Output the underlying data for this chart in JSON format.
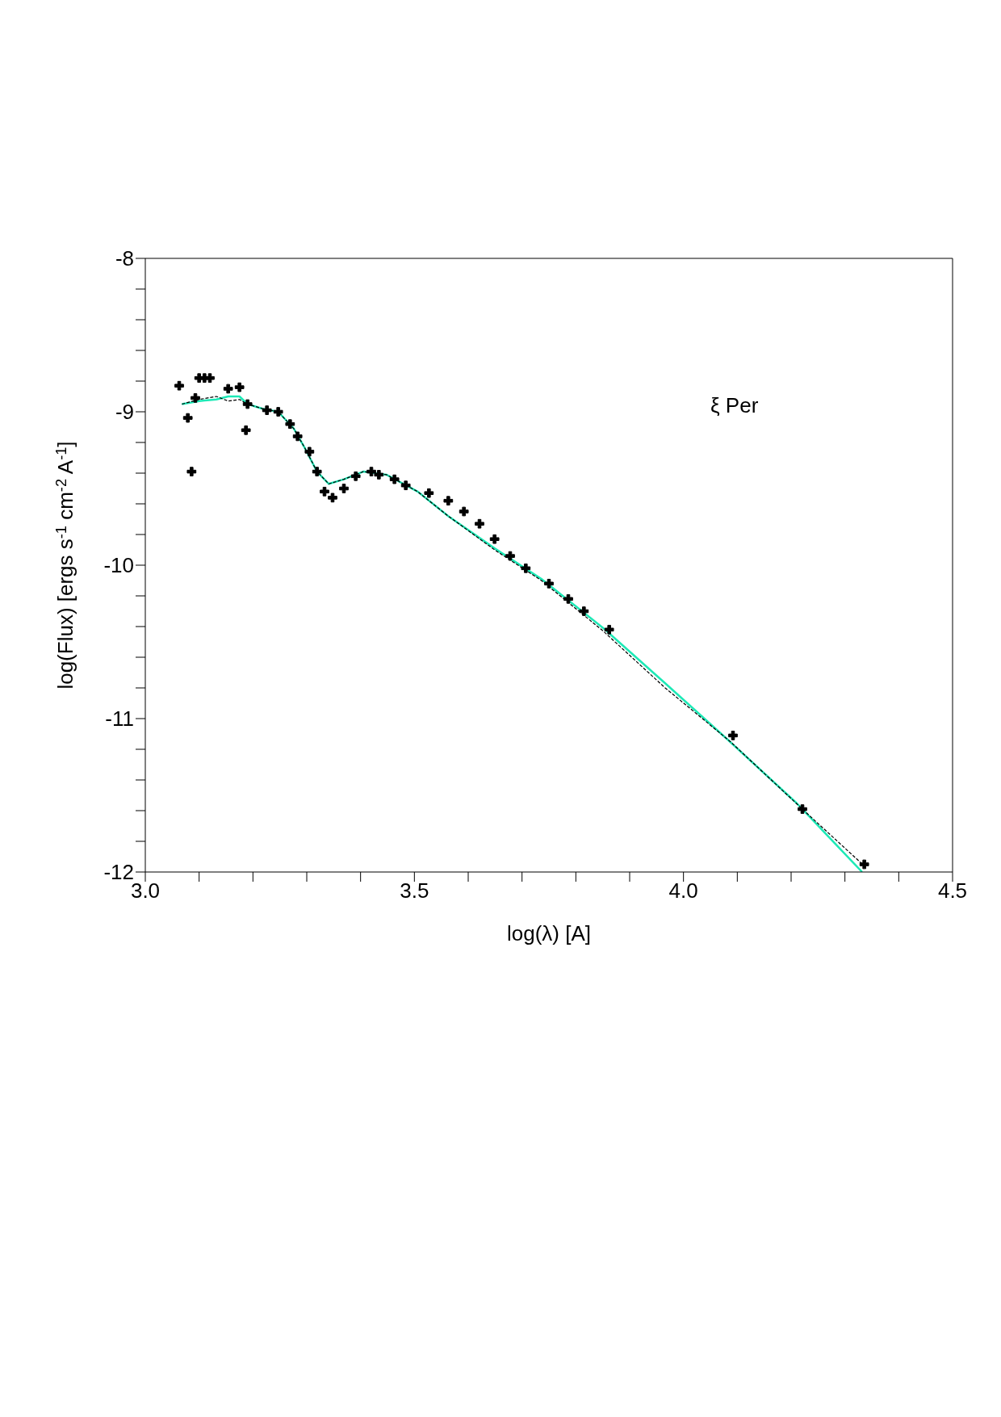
{
  "chart_data": {
    "type": "scatter",
    "xlabel": "log(λ) [A]",
    "ylabel": "log(Flux) [ergs s$^{-1}$ cm$^{-2}$ A$^{-1}$]",
    "annotations": [
      "ξ Per"
    ],
    "xlim": [
      3.0,
      4.5
    ],
    "ylim": [
      -12,
      -8
    ],
    "xticks": [
      {
        "value": 3.0,
        "label": "3.0"
      },
      {
        "value": 3.1,
        "label": null
      },
      {
        "value": 3.2,
        "label": null
      },
      {
        "value": 3.3,
        "label": null
      },
      {
        "value": 3.4,
        "label": null
      },
      {
        "value": 3.5,
        "label": "3.5"
      },
      {
        "value": 3.6,
        "label": null
      },
      {
        "value": 3.7,
        "label": null
      },
      {
        "value": 3.8,
        "label": null
      },
      {
        "value": 3.9,
        "label": null
      },
      {
        "value": 4.0,
        "label": "4.0"
      },
      {
        "value": 4.1,
        "label": null
      },
      {
        "value": 4.2,
        "label": null
      },
      {
        "value": 4.3,
        "label": null
      },
      {
        "value": 4.4,
        "label": null
      },
      {
        "value": 4.5,
        "label": "4.5"
      }
    ],
    "yticks": [
      -12,
      {
        "value": -11.8,
        "label": null
      },
      {
        "value": -11.6,
        "label": null
      },
      {
        "value": -11.4,
        "label": null
      },
      {
        "value": -11.2,
        "label": null
      },
      -11,
      {
        "value": -10.8,
        "label": null
      },
      {
        "value": -10.6,
        "label": null
      },
      {
        "value": -10.4,
        "label": null
      },
      {
        "value": -10.2,
        "label": null
      },
      -10,
      {
        "value": -9.8,
        "label": null
      },
      {
        "value": -9.6,
        "label": null
      },
      {
        "value": -9.4,
        "label": null
      },
      {
        "value": -9.2,
        "label": null
      },
      -9,
      {
        "value": -8.8,
        "label": null
      },
      {
        "value": -8.6,
        "label": null
      },
      {
        "value": -8.4,
        "label": null
      },
      {
        "value": -8.2,
        "label": null
      },
      -8
    ],
    "series": [
      {
        "type": "scatter",
        "marker": "cross",
        "color": "#000000",
        "x": [
          3.063,
          3.079,
          3.086,
          3.093,
          3.1,
          3.11,
          3.12,
          3.154,
          3.175,
          3.187,
          3.19,
          3.226,
          3.247,
          3.269,
          3.283,
          3.305,
          3.319,
          3.333,
          3.348,
          3.369,
          3.391,
          3.42,
          3.434,
          3.463,
          3.484,
          3.527,
          3.563,
          3.592,
          3.621,
          3.649,
          3.678,
          3.707,
          3.75,
          3.786,
          3.815,
          3.862,
          4.092,
          4.221,
          4.336
        ],
        "values": [
          -8.83,
          -9.04,
          -9.39,
          -8.91,
          -8.78,
          -8.78,
          -8.78,
          -8.85,
          -8.84,
          -9.12,
          -8.95,
          -8.99,
          -9.0,
          -9.08,
          -9.16,
          -9.26,
          -9.39,
          -9.52,
          -9.56,
          -9.5,
          -9.42,
          -9.39,
          -9.41,
          -9.44,
          -9.48,
          -9.53,
          -9.58,
          -9.65,
          -9.73,
          -9.83,
          -9.94,
          -10.02,
          -10.12,
          -10.22,
          -10.3,
          -10.42,
          -11.11,
          -11.59,
          -11.95
        ]
      },
      {
        "type": "line",
        "marker": "none",
        "line_style": "dashed",
        "color": "#000000",
        "x": [
          3.068,
          3.1,
          3.132,
          3.154,
          3.175,
          3.19,
          3.218,
          3.247,
          3.276,
          3.297,
          3.319,
          3.341,
          3.369,
          3.405,
          3.448,
          3.506,
          3.563,
          3.649,
          3.736,
          3.851,
          3.966,
          4.087,
          4.224,
          4.339
        ],
        "values": [
          -8.95,
          -8.92,
          -8.9,
          -8.93,
          -8.92,
          -8.95,
          -8.98,
          -9.0,
          -9.11,
          -9.24,
          -9.39,
          -9.47,
          -9.44,
          -9.39,
          -9.41,
          -9.52,
          -9.68,
          -9.9,
          -10.1,
          -10.43,
          -10.8,
          -11.15,
          -11.6,
          -11.97
        ]
      },
      {
        "type": "line",
        "marker": "none",
        "line_style": "solid",
        "color": "#1de9b6",
        "x": [
          3.068,
          3.1,
          3.132,
          3.154,
          3.175,
          3.19,
          3.218,
          3.247,
          3.276,
          3.297,
          3.319,
          3.341,
          3.369,
          3.405,
          3.448,
          3.506,
          3.563,
          3.649,
          3.736,
          3.851,
          3.966,
          4.08,
          4.21,
          4.332
        ],
        "values": [
          -8.95,
          -8.93,
          -8.92,
          -8.9,
          -8.9,
          -8.95,
          -8.98,
          -9.0,
          -9.11,
          -9.24,
          -9.39,
          -9.47,
          -9.44,
          -9.39,
          -9.41,
          -9.52,
          -9.68,
          -9.89,
          -10.09,
          -10.41,
          -10.77,
          -11.13,
          -11.55,
          -12.0
        ]
      }
    ]
  }
}
